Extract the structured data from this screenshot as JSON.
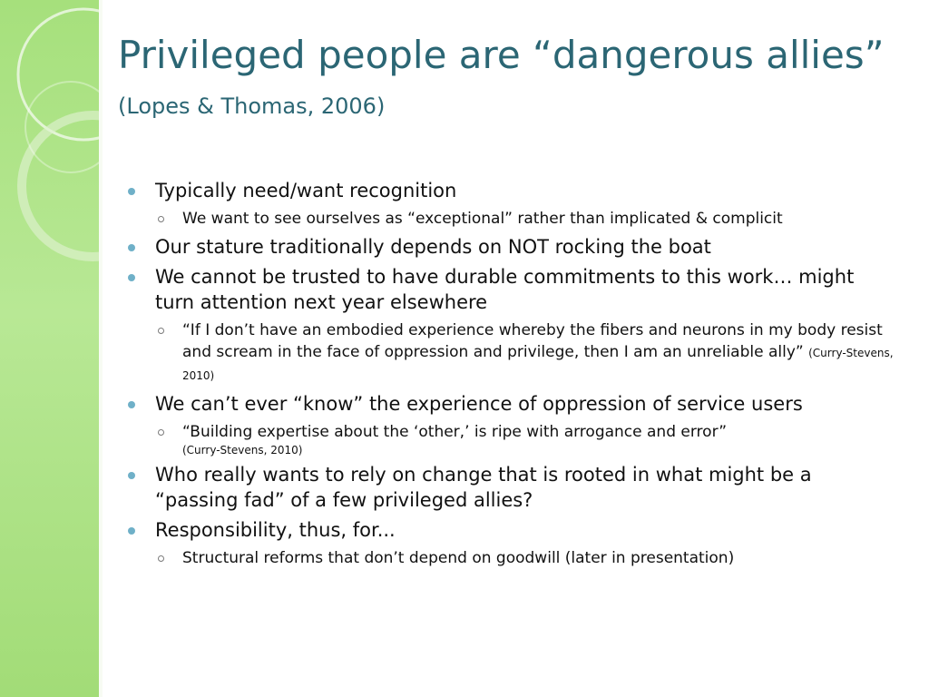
{
  "slide": {
    "title_main": "Privileged people are “dangerous allies”",
    "title_citation": "(Lopes & Thomas, 2006)"
  },
  "bullets": [
    {
      "text": "Typically need/want recognition",
      "sub": [
        {
          "text": "We want to see ourselves as “exceptional” rather than implicated & complicit"
        }
      ]
    },
    {
      "text": "Our stature traditionally depends on NOT rocking the boat"
    },
    {
      "text": "We cannot be trusted to have durable commitments to this work… might turn attention next year elsewhere",
      "sub": [
        {
          "text": "“If I don’t have an embodied experience whereby the fibers and neurons in my body resist and scream in the face of oppression and privilege, then I am an unreliable ally”",
          "citation": "(Curry-Stevens, 2010)"
        }
      ]
    },
    {
      "text": "We can’t ever “know” the experience of oppression of service users",
      "sub": [
        {
          "text": "“Building expertise about the ‘other,’ is ripe with arrogance and error”",
          "citation": "(Curry-Stevens, 2010)"
        }
      ]
    },
    {
      "text": "Who really wants to rely on change that is rooted in what might be a “passing fad” of a few privileged allies?"
    },
    {
      "text": "Responsibility, thus, for...",
      "sub": [
        {
          "text": "Structural reforms that don’t depend on goodwill (later in presentation)"
        }
      ]
    }
  ],
  "colors": {
    "title": "#2b6674",
    "bullet_dot": "#6fb0c8",
    "side_panel": "#a6e07c",
    "background": "#ffffff"
  }
}
